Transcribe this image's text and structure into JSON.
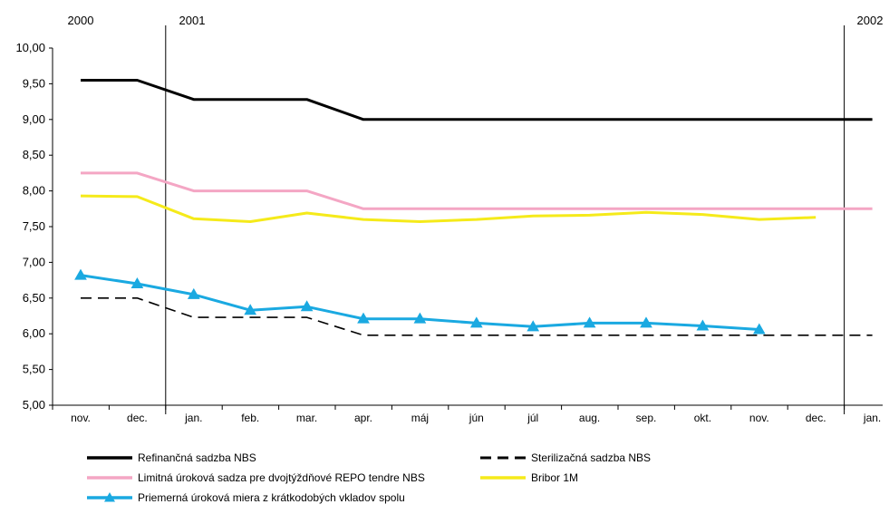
{
  "chart_data": {
    "type": "line",
    "title": "",
    "xlabel": "",
    "ylabel": "",
    "ylim": [
      5.0,
      10.0
    ],
    "yticks": [
      "5,00",
      "5,50",
      "6,00",
      "6,50",
      "7,00",
      "7,50",
      "8,00",
      "8,50",
      "9,00",
      "9,50",
      "10,00"
    ],
    "categories": [
      "nov.",
      "dec.",
      "jan.",
      "feb.",
      "mar.",
      "apr.",
      "máj",
      "jún",
      "júl",
      "aug.",
      "sep.",
      "okt.",
      "nov.",
      "dec.",
      "jan."
    ],
    "year_labels": [
      {
        "label": "2000",
        "category_index": 0
      },
      {
        "label": "2001",
        "category_index": 2
      },
      {
        "label": "2002",
        "category_index": 14
      }
    ],
    "legend_position": "bottom",
    "grid": false,
    "series": [
      {
        "name": "Refinančná sadzba NBS",
        "color": "#000000",
        "style": "solid",
        "marker": "none",
        "values": [
          9.55,
          9.55,
          9.28,
          9.28,
          9.28,
          9.0,
          9.0,
          9.0,
          9.0,
          9.0,
          9.0,
          9.0,
          9.0,
          9.0,
          9.0
        ]
      },
      {
        "name": "Sterilizačná sadzba NBS",
        "color": "#000000",
        "style": "dashed",
        "marker": "none",
        "values": [
          6.5,
          6.5,
          6.23,
          6.23,
          6.23,
          5.98,
          5.98,
          5.98,
          5.98,
          5.98,
          5.98,
          5.98,
          5.98,
          5.98,
          5.98
        ]
      },
      {
        "name": "Limitná úroková sadza pre dvojtýždňové REPO tendre NBS",
        "color": "#f4a6c4",
        "style": "solid",
        "marker": "none",
        "values": [
          8.25,
          8.25,
          8.0,
          8.0,
          8.0,
          7.75,
          7.75,
          7.75,
          7.75,
          7.75,
          7.75,
          7.75,
          7.75,
          7.75,
          7.75
        ]
      },
      {
        "name": "Bribor 1M",
        "color": "#f5ea1a",
        "style": "solid",
        "marker": "none",
        "values": [
          7.93,
          7.92,
          7.61,
          7.57,
          7.69,
          7.6,
          7.57,
          7.6,
          7.65,
          7.66,
          7.7,
          7.67,
          7.6,
          7.63,
          null
        ]
      },
      {
        "name": "Priemerná úroková miera z krátkodobých vkladov spolu",
        "color": "#1aa9e1",
        "style": "solid",
        "marker": "triangle",
        "values": [
          6.82,
          6.7,
          6.55,
          6.33,
          6.38,
          6.21,
          6.21,
          6.15,
          6.1,
          6.15,
          6.15,
          6.11,
          6.06,
          null,
          null
        ]
      }
    ]
  }
}
